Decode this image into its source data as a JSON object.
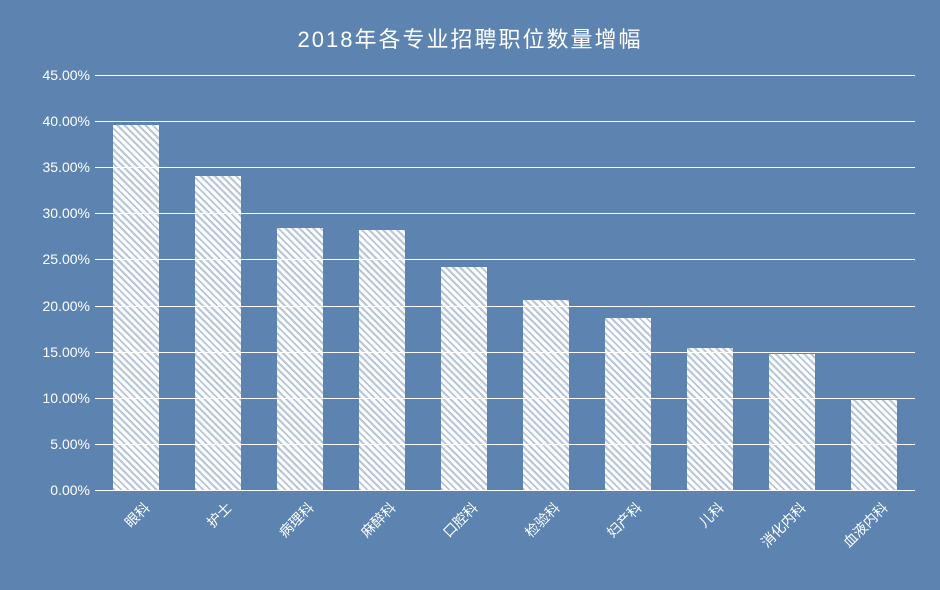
{
  "chart": {
    "type": "bar",
    "title": "2018年各专业招聘职位数量增幅",
    "title_fontsize": 22,
    "title_color": "#ffffff",
    "background_color": "#5d83b1",
    "grid_color": "#ffffff",
    "axis_label_color": "#ffffff",
    "axis_label_fontsize": 14,
    "ylim_min": 0,
    "ylim_max": 45,
    "ytick_step": 5,
    "ytick_format": "{v}.00%",
    "bar_fill_color": "#ffffff",
    "bar_hatch_color": "#8aa5c7",
    "bar_width_ratio": 0.55,
    "categories": [
      "眼科",
      "护士",
      "病理科",
      "麻醉科",
      "口腔科",
      "检验科",
      "妇产科",
      "儿科",
      "消化内科",
      "血液内科"
    ],
    "values": [
      39.6,
      34.0,
      28.4,
      28.2,
      24.2,
      20.6,
      18.6,
      15.4,
      14.7,
      9.8
    ],
    "x_label_rotation_deg": -45
  }
}
